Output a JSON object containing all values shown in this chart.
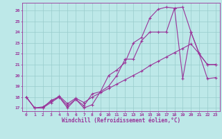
{
  "title": "",
  "xlabel": "Windchill (Refroidissement éolien,°C)",
  "ylabel": "",
  "bg_color": "#bde8e8",
  "line_color": "#993399",
  "xlim": [
    -0.5,
    23.5
  ],
  "ylim": [
    16.7,
    26.7
  ],
  "xticks": [
    0,
    1,
    2,
    3,
    4,
    5,
    6,
    7,
    8,
    9,
    10,
    11,
    12,
    13,
    14,
    15,
    16,
    17,
    18,
    19,
    20,
    21,
    22,
    23
  ],
  "yticks": [
    17,
    18,
    19,
    20,
    21,
    22,
    23,
    24,
    25,
    26
  ],
  "grid_color": "#99cccc",
  "line1_x": [
    0,
    1,
    2,
    3,
    4,
    5,
    6,
    7,
    8,
    9,
    10,
    11,
    12,
    13,
    14,
    15,
    16,
    17,
    18,
    19,
    20,
    21,
    22,
    23
  ],
  "line1_y": [
    18,
    17,
    17,
    17.7,
    18,
    17,
    17.8,
    17,
    17.3,
    18.5,
    19,
    20,
    21.5,
    21.5,
    23.2,
    24,
    24,
    24,
    26.2,
    19.7,
    24,
    22,
    21,
    21
  ],
  "line2_x": [
    0,
    1,
    2,
    3,
    4,
    5,
    6,
    7,
    8,
    9,
    10,
    11,
    12,
    13,
    14,
    15,
    16,
    17,
    18,
    19,
    20,
    21,
    22,
    23
  ],
  "line2_y": [
    18,
    17,
    17,
    17.5,
    18,
    17.2,
    17.8,
    17.2,
    18.3,
    18.5,
    20,
    20.5,
    21.2,
    23,
    23.5,
    25.3,
    26.1,
    26.3,
    26.2,
    26.3,
    24,
    22,
    21,
    21.0
  ],
  "line3_x": [
    0,
    1,
    2,
    3,
    4,
    5,
    6,
    7,
    8,
    9,
    10,
    11,
    12,
    13,
    14,
    15,
    16,
    17,
    18,
    19,
    20,
    21,
    22,
    23
  ],
  "line3_y": [
    18,
    17,
    17.1,
    17.6,
    18.1,
    17.4,
    17.9,
    17.5,
    18.0,
    18.4,
    18.8,
    19.2,
    19.6,
    20.0,
    20.4,
    20.9,
    21.3,
    21.7,
    22.1,
    22.5,
    22.9,
    22.0,
    19.7,
    19.8
  ]
}
